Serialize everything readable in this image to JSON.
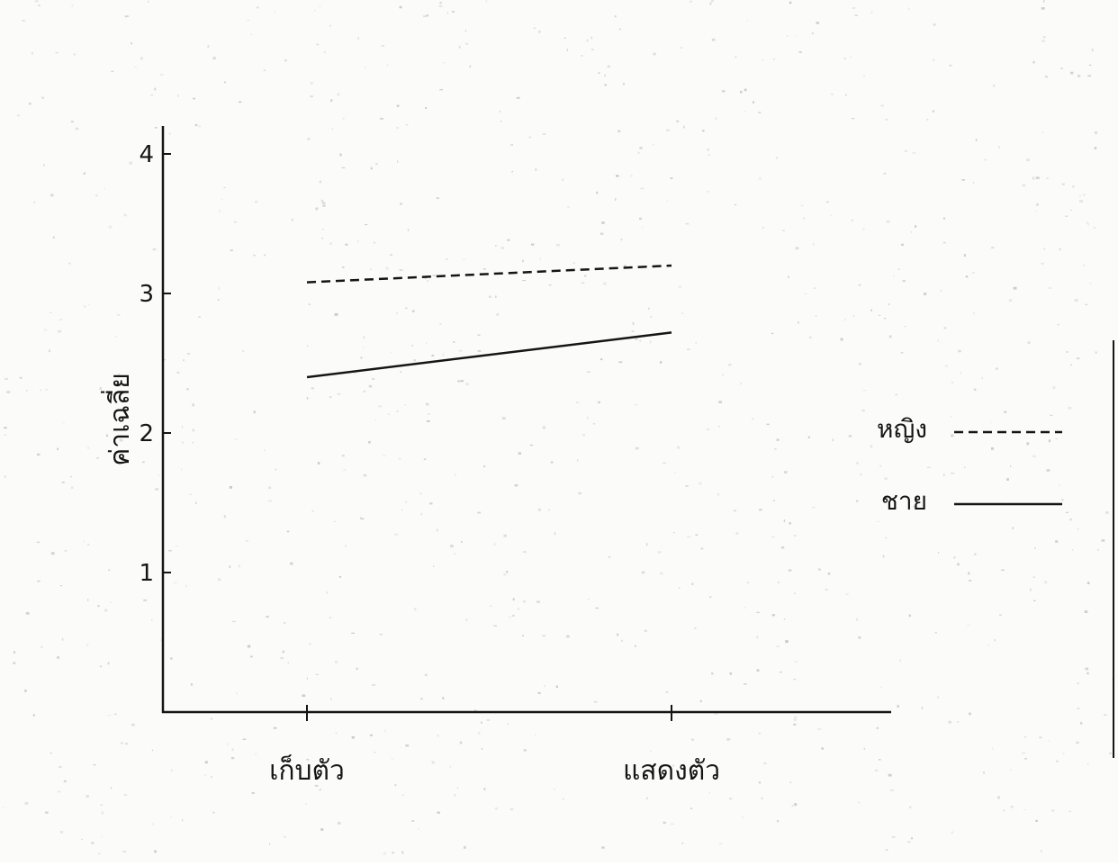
{
  "chart_data": {
    "type": "line",
    "categories": [
      "เก็บตัว",
      "แสดงตัว"
    ],
    "series": [
      {
        "name": "หญิง",
        "values": [
          3.08,
          3.2
        ],
        "style": "dashed"
      },
      {
        "name": "ชาย",
        "values": [
          2.4,
          2.72
        ],
        "style": "solid"
      }
    ],
    "xlabel": "",
    "ylabel": "ค่าเฉลี่ย",
    "yticks": [
      "1",
      "2",
      "3",
      "4"
    ],
    "ylim": [
      0,
      4.2
    ],
    "grid": false,
    "legend": "right",
    "colors": {
      "line": "#151515",
      "background": "#fbfbfa"
    }
  }
}
